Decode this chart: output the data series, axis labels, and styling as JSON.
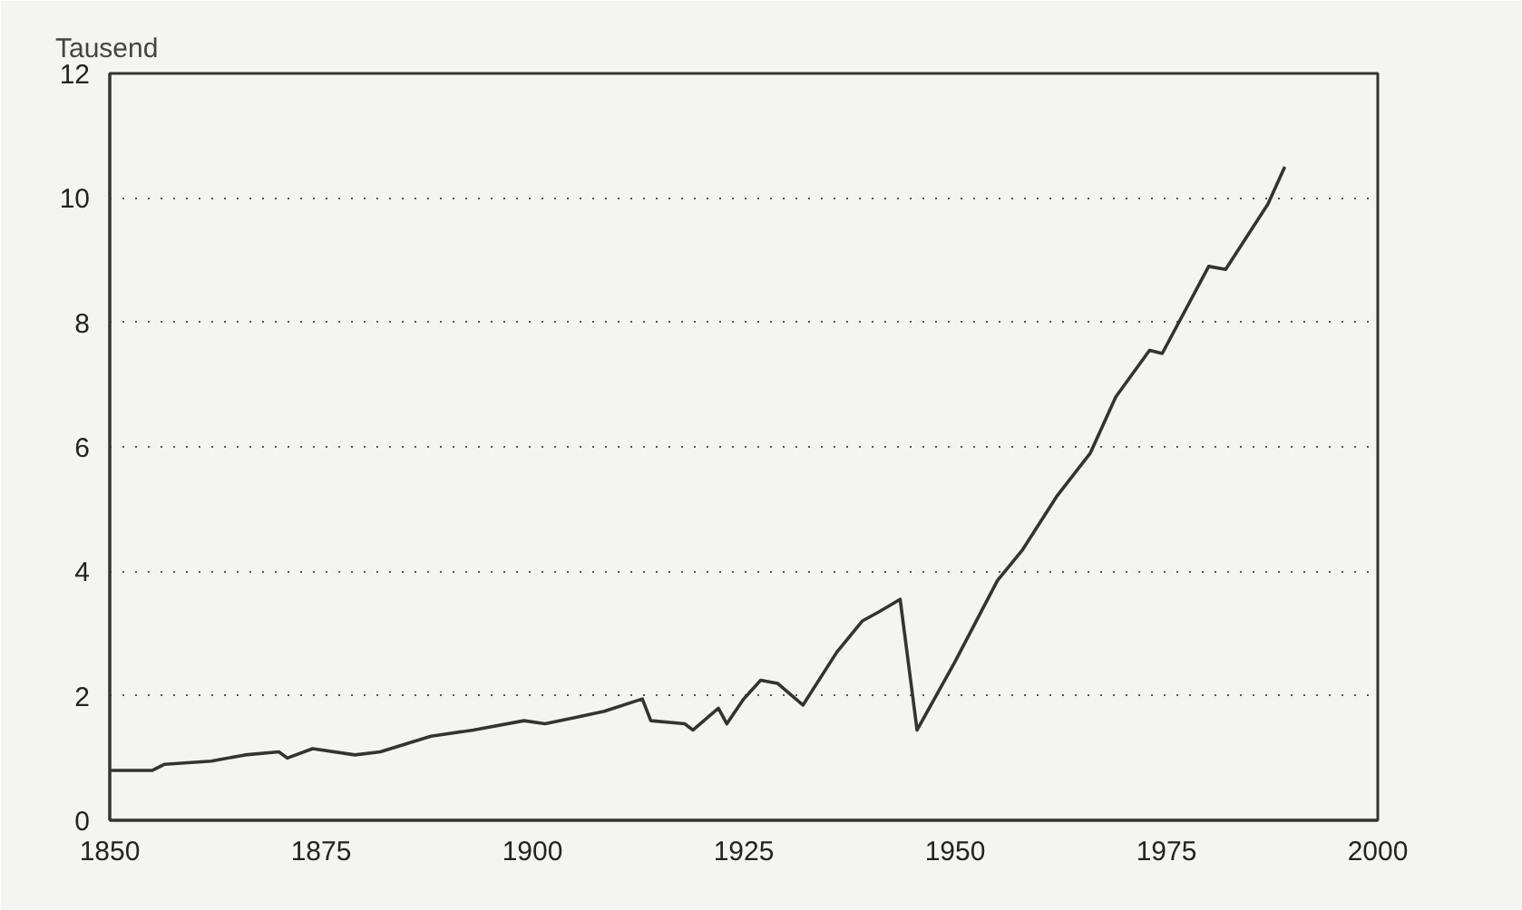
{
  "chart_data": {
    "type": "line",
    "ylabel": "Tausend",
    "x": [
      1850,
      1855,
      1856.5,
      1862,
      1866,
      1870,
      1871,
      1874,
      1879,
      1882,
      1888,
      1893,
      1899,
      1901.5,
      1905,
      1908.5,
      1913,
      1914,
      1918,
      1919,
      1922,
      1923,
      1925,
      1927,
      1929,
      1932,
      1936,
      1939,
      1941,
      1943.5,
      1945.5,
      1950,
      1955,
      1958,
      1962,
      1966,
      1969,
      1973,
      1974.5,
      1980,
      1982,
      1987,
      1989
    ],
    "series": [
      {
        "color": "#333333",
        "values": [
          0.8,
          0.8,
          0.9,
          0.95,
          1.05,
          1.1,
          1.0,
          1.15,
          1.05,
          1.1,
          1.35,
          1.45,
          1.6,
          1.55,
          1.65,
          1.75,
          1.95,
          1.6,
          1.55,
          1.45,
          1.8,
          1.55,
          1.95,
          2.25,
          2.2,
          1.85,
          2.7,
          3.2,
          3.35,
          3.55,
          1.45,
          2.55,
          3.85,
          4.35,
          5.2,
          5.9,
          6.8,
          7.55,
          7.5,
          8.9,
          8.85,
          9.9,
          10.5
        ]
      }
    ],
    "xlim": [
      1850,
      2000
    ],
    "ylim": [
      0,
      12
    ],
    "xticks": [
      1850,
      1875,
      1900,
      1925,
      1950,
      1975,
      2000
    ],
    "yticks": [
      0,
      2,
      4,
      6,
      8,
      10,
      12
    ],
    "grid": "y",
    "line_style": "solid"
  }
}
